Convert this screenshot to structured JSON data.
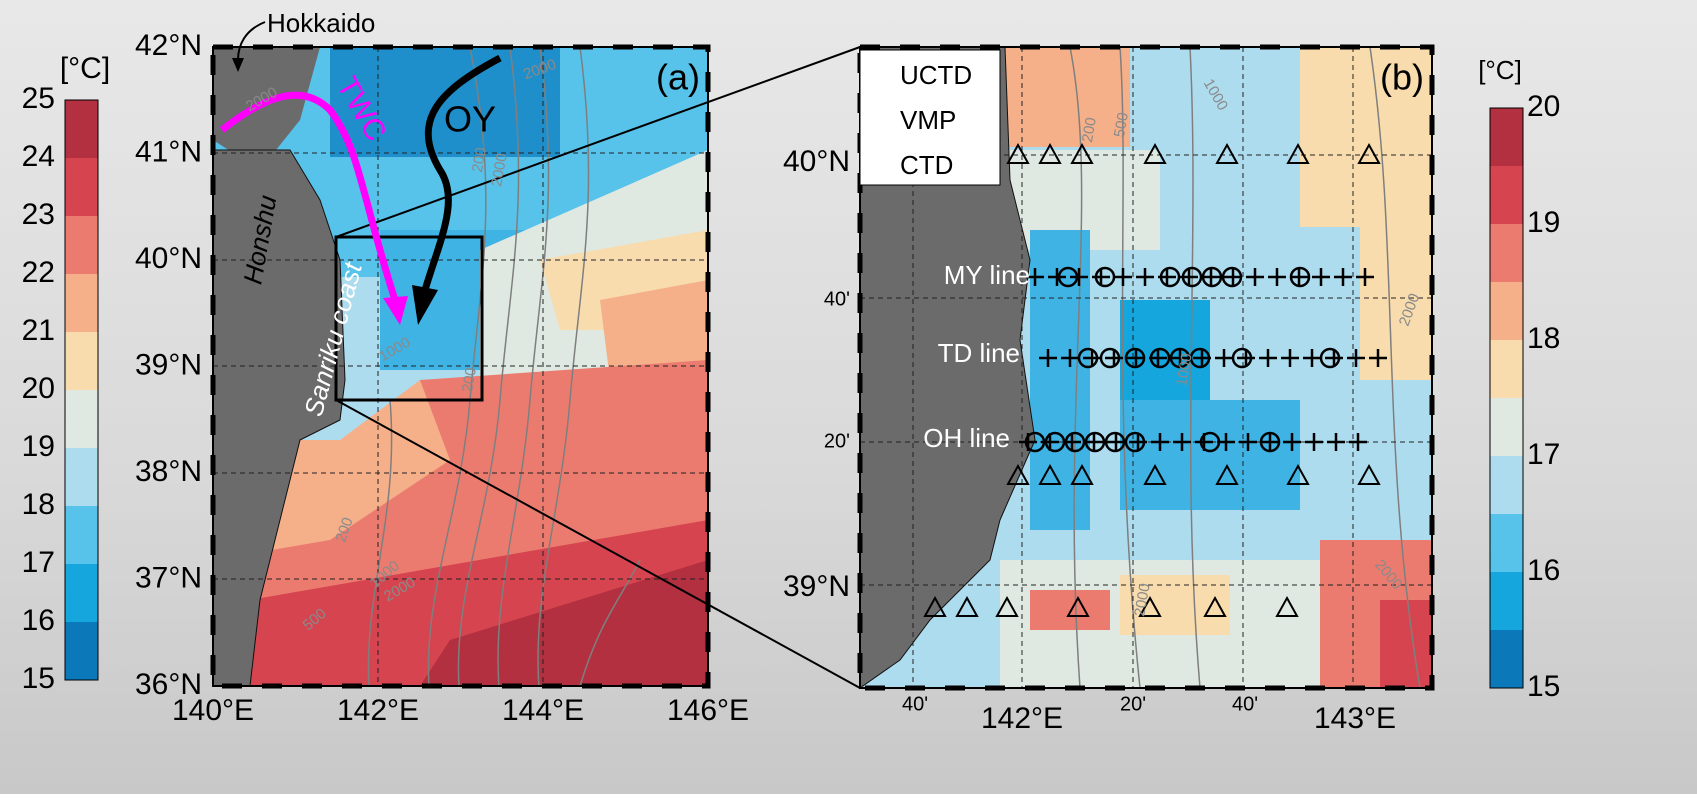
{
  "panel_a": {
    "label": "(a)",
    "colorbar": {
      "unit": "[°C]",
      "ticks": [
        25,
        24,
        23,
        22,
        21,
        20,
        19,
        18,
        17,
        16,
        15
      ]
    },
    "lat_labels": [
      "42°N",
      "41°N",
      "40°N",
      "39°N",
      "38°N",
      "37°N",
      "36°N"
    ],
    "lon_labels": [
      "140°E",
      "142°E",
      "144°E",
      "146°E"
    ],
    "annotations": {
      "hokkaido": "Hokkaido",
      "honshu": "Honshu",
      "sanriku": "Sanriku coast",
      "twc": "TWC",
      "oy": "OY"
    },
    "contour_labels": [
      "2000",
      "2000",
      "200",
      "2000",
      "200",
      "1000",
      "500",
      "2000",
      "200",
      "1000"
    ]
  },
  "panel_b": {
    "label": "(b)",
    "legend": [
      "UCTD",
      "VMP",
      "CTD"
    ],
    "lines": [
      "MY line",
      "TD line",
      "OH line"
    ],
    "colorbar": {
      "unit": "[°C]",
      "ticks": [
        20,
        19,
        18,
        17,
        16,
        15
      ]
    },
    "lat_labels": [
      "40°N",
      "40'",
      "20'",
      "39°N"
    ],
    "lon_labels": [
      "40'",
      "142°E",
      "20'",
      "40'",
      "143°E"
    ],
    "contour_labels": [
      "1000",
      "200",
      "500",
      "2000",
      "1000",
      "2000",
      "2000"
    ]
  }
}
